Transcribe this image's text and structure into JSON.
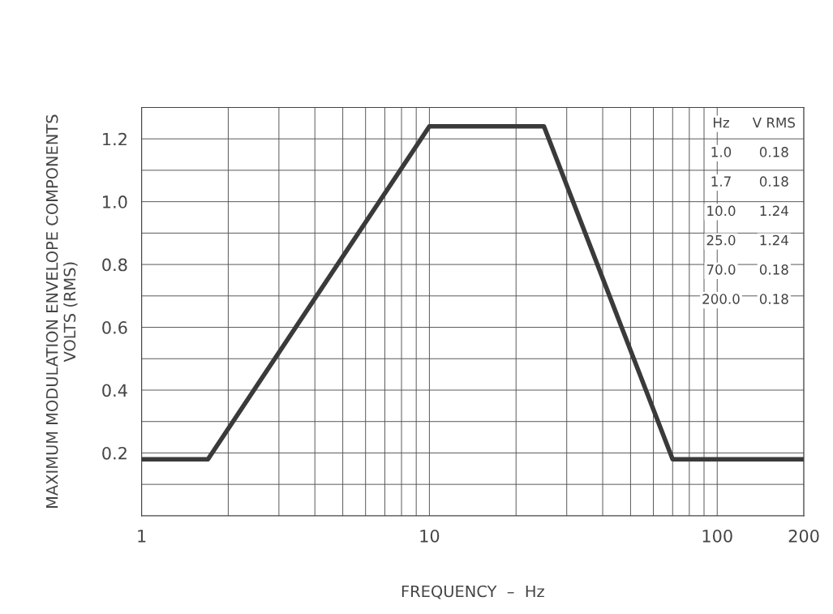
{
  "chart_data": {
    "type": "line",
    "xlabel": "FREQUENCY  –  Hz",
    "ylabel": "MAXIMUM MODULATION ENVELOPE COMPONENTS\nVOLTS (RMS)",
    "log": "x",
    "x": [
      1,
      1.7,
      10,
      25,
      70,
      200
    ],
    "series": [
      {
        "color": "#3a3a3a",
        "values": [
          0.18,
          0.18,
          1.24,
          1.24,
          0.18,
          0.18
        ]
      }
    ],
    "annotations": [
      "Hz",
      "V RMS",
      "1.0",
      "0.18",
      "1.7",
      "0.18",
      "10.0",
      "1.24",
      "25.0",
      "1.24",
      "70.0",
      "0.18",
      "200.0",
      "0.18"
    ],
    "xlim": [
      1,
      200
    ],
    "xticks": [
      1,
      {
        "value": 2,
        "label": null
      },
      {
        "value": 3,
        "label": null
      },
      {
        "value": 4,
        "label": null
      },
      {
        "value": 5,
        "label": null
      },
      {
        "value": 6,
        "label": null
      },
      {
        "value": 7,
        "label": null
      },
      {
        "value": 8,
        "label": null
      },
      {
        "value": 9,
        "label": null
      },
      10,
      {
        "value": 20,
        "label": null
      },
      {
        "value": 30,
        "label": null
      },
      {
        "value": 40,
        "label": null
      },
      {
        "value": 50,
        "label": null
      },
      {
        "value": 60,
        "label": null
      },
      {
        "value": 70,
        "label": null
      },
      {
        "value": 80,
        "label": null
      },
      {
        "value": 90,
        "label": null
      },
      100,
      200
    ],
    "ylim": [
      0,
      1.3
    ],
    "yticks": [
      {
        "value": 0.1,
        "label": null
      },
      {
        "value": 0.2,
        "label": "0.2"
      },
      {
        "value": 0.3,
        "label": null
      },
      {
        "value": 0.4,
        "label": "0.4"
      },
      {
        "value": 0.5,
        "label": null
      },
      {
        "value": 0.6,
        "label": "0.6"
      },
      {
        "value": 0.7,
        "label": null
      },
      {
        "value": 0.8,
        "label": "0.8"
      },
      {
        "value": 0.9,
        "label": null
      },
      {
        "value": 1.0,
        "label": "1.0"
      },
      {
        "value": 1.1,
        "label": null
      },
      {
        "value": 1.2,
        "label": "1.2"
      }
    ],
    "grid": true,
    "line_style": "solid",
    "marker": "none",
    "legend": false
  }
}
